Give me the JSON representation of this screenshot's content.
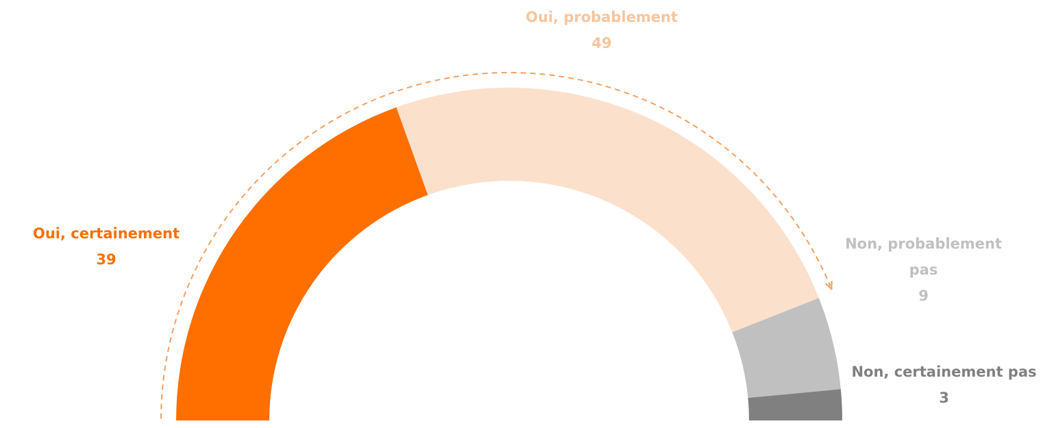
{
  "chart_data": {
    "type": "donut",
    "categories": [
      "Oui, certainement",
      "Oui, probablement",
      "Non, probablement pas",
      "Non, certainement pas"
    ],
    "values": [
      39,
      49,
      9,
      3
    ],
    "colors": [
      "#ff6f00",
      "#fbe0cc",
      "#c0c0c0",
      "#808080"
    ],
    "label_colors": [
      "#ff6f00",
      "#f8c59c",
      "#c0c0c0",
      "#808080"
    ]
  }
}
